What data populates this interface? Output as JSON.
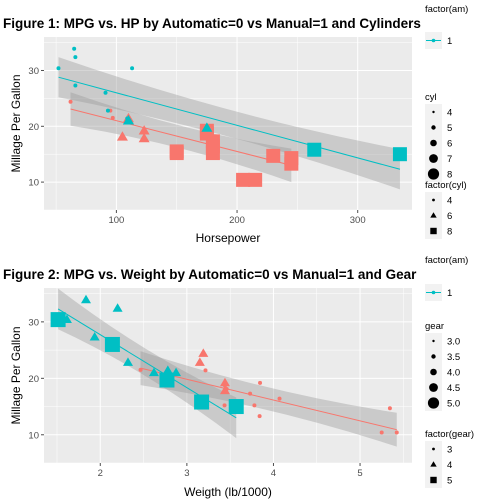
{
  "colors": {
    "manual": "#00bfc4",
    "automatic": "#f8766d",
    "panel": "#ebebeb",
    "grid": "#ffffff",
    "ribbon": "#999999"
  },
  "chart_data": [
    {
      "type": "scatter",
      "title": "Figure 1: MPG vs. HP by Automatic=0 vs Manual=1 and Cylinders",
      "xlabel": "Horsepower",
      "ylabel": "Millage Per Gallon",
      "xlim": [
        40,
        345
      ],
      "ylim": [
        5,
        36
      ],
      "xticks": [
        100,
        200,
        300
      ],
      "yticks": [
        10,
        20,
        30
      ],
      "grid": true,
      "legend_position": "right",
      "legend": {
        "color_title": "factor(am)",
        "color_items": [
          "1"
        ],
        "size_title": "cyl",
        "size_items": [
          "4",
          "5",
          "6",
          "7",
          "8"
        ],
        "shape_title": "factor(cyl)",
        "shape_items": [
          "4",
          "6",
          "8"
        ]
      },
      "series": [
        {
          "name": "0",
          "points": [
            {
              "x": 110,
              "y": 21.4,
              "shape": "6"
            },
            {
              "x": 175,
              "y": 18.7,
              "shape": "8"
            },
            {
              "x": 105,
              "y": 18.1,
              "shape": "6"
            },
            {
              "x": 245,
              "y": 14.3,
              "shape": "8"
            },
            {
              "x": 62,
              "y": 24.4,
              "shape": "4"
            },
            {
              "x": 95,
              "y": 22.8,
              "shape": "4"
            },
            {
              "x": 123,
              "y": 19.2,
              "shape": "6"
            },
            {
              "x": 123,
              "y": 17.8,
              "shape": "6"
            },
            {
              "x": 180,
              "y": 16.4,
              "shape": "8"
            },
            {
              "x": 180,
              "y": 17.3,
              "shape": "8"
            },
            {
              "x": 180,
              "y": 15.2,
              "shape": "8"
            },
            {
              "x": 205,
              "y": 10.4,
              "shape": "8"
            },
            {
              "x": 215,
              "y": 10.4,
              "shape": "8"
            },
            {
              "x": 230,
              "y": 14.7,
              "shape": "8"
            },
            {
              "x": 97,
              "y": 21.5,
              "shape": "4"
            },
            {
              "x": 150,
              "y": 15.5,
              "shape": "8"
            },
            {
              "x": 150,
              "y": 15.2,
              "shape": "8"
            },
            {
              "x": 245,
              "y": 13.3,
              "shape": "8"
            },
            {
              "x": 175,
              "y": 19.2,
              "shape": "8"
            }
          ],
          "fit": {
            "x": [
              62,
              245
            ],
            "y": [
              23.1,
              13.0
            ]
          }
        },
        {
          "name": "1",
          "points": [
            {
              "x": 110,
              "y": 21.0,
              "shape": "6"
            },
            {
              "x": 110,
              "y": 21.0,
              "shape": "6"
            },
            {
              "x": 93,
              "y": 22.8,
              "shape": "4"
            },
            {
              "x": 66,
              "y": 32.4,
              "shape": "4"
            },
            {
              "x": 52,
              "y": 30.4,
              "shape": "4"
            },
            {
              "x": 65,
              "y": 33.9,
              "shape": "4"
            },
            {
              "x": 66,
              "y": 27.3,
              "shape": "4"
            },
            {
              "x": 91,
              "y": 26.0,
              "shape": "4"
            },
            {
              "x": 113,
              "y": 30.4,
              "shape": "4"
            },
            {
              "x": 264,
              "y": 15.8,
              "shape": "8"
            },
            {
              "x": 175,
              "y": 19.7,
              "shape": "6"
            },
            {
              "x": 335,
              "y": 15.0,
              "shape": "8"
            },
            {
              "x": 109,
              "y": 21.4,
              "shape": "4"
            }
          ],
          "fit": {
            "x": [
              52,
              335
            ],
            "y": [
              28.8,
              12.3
            ]
          }
        }
      ]
    },
    {
      "type": "scatter",
      "title": "Figure 2: MPG vs. Weight by Automatic=0 vs Manual=1 and Gear",
      "xlabel": "Weigth (lb/1000)",
      "ylabel": "Millage Per Gallon",
      "xlim": [
        1.35,
        5.6
      ],
      "ylim": [
        5,
        36
      ],
      "xticks": [
        2,
        3,
        4,
        5
      ],
      "yticks": [
        10,
        20,
        30
      ],
      "grid": true,
      "legend_position": "right",
      "legend": {
        "color_title": "factor(am)",
        "color_items": [
          "1"
        ],
        "size_title": "gear",
        "size_items": [
          "3.0",
          "3.5",
          "4.0",
          "4.5",
          "5.0"
        ],
        "shape_title": "factor(gear)",
        "shape_items": [
          "3",
          "4",
          "5"
        ]
      },
      "series": [
        {
          "name": "0",
          "points": [
            {
              "x": 3.215,
              "y": 21.4,
              "shape": "3"
            },
            {
              "x": 3.44,
              "y": 18.7,
              "shape": "3"
            },
            {
              "x": 3.46,
              "y": 18.1,
              "shape": "3"
            },
            {
              "x": 3.57,
              "y": 14.3,
              "shape": "3"
            },
            {
              "x": 3.19,
              "y": 24.4,
              "shape": "4"
            },
            {
              "x": 3.15,
              "y": 22.8,
              "shape": "4"
            },
            {
              "x": 3.44,
              "y": 19.2,
              "shape": "4"
            },
            {
              "x": 3.44,
              "y": 17.8,
              "shape": "4"
            },
            {
              "x": 4.07,
              "y": 16.4,
              "shape": "3"
            },
            {
              "x": 3.73,
              "y": 17.3,
              "shape": "3"
            },
            {
              "x": 3.78,
              "y": 15.2,
              "shape": "3"
            },
            {
              "x": 5.25,
              "y": 10.4,
              "shape": "3"
            },
            {
              "x": 5.424,
              "y": 10.4,
              "shape": "3"
            },
            {
              "x": 5.345,
              "y": 14.7,
              "shape": "3"
            },
            {
              "x": 2.465,
              "y": 21.5,
              "shape": "3"
            },
            {
              "x": 3.52,
              "y": 15.5,
              "shape": "3"
            },
            {
              "x": 3.435,
              "y": 15.2,
              "shape": "3"
            },
            {
              "x": 3.84,
              "y": 13.3,
              "shape": "3"
            },
            {
              "x": 3.845,
              "y": 19.2,
              "shape": "3"
            }
          ],
          "fit": {
            "x": [
              2.465,
              5.424
            ],
            "y": [
              21.8,
              10.9
            ]
          }
        },
        {
          "name": "1",
          "points": [
            {
              "x": 2.62,
              "y": 21.0,
              "shape": "4"
            },
            {
              "x": 2.875,
              "y": 21.0,
              "shape": "4"
            },
            {
              "x": 2.32,
              "y": 22.8,
              "shape": "4"
            },
            {
              "x": 2.2,
              "y": 32.4,
              "shape": "4"
            },
            {
              "x": 1.615,
              "y": 30.4,
              "shape": "4"
            },
            {
              "x": 1.835,
              "y": 33.9,
              "shape": "4"
            },
            {
              "x": 1.935,
              "y": 27.3,
              "shape": "4"
            },
            {
              "x": 2.14,
              "y": 26.0,
              "shape": "5"
            },
            {
              "x": 1.513,
              "y": 30.4,
              "shape": "5"
            },
            {
              "x": 3.17,
              "y": 15.8,
              "shape": "5"
            },
            {
              "x": 2.77,
              "y": 19.7,
              "shape": "5"
            },
            {
              "x": 3.57,
              "y": 15.0,
              "shape": "5"
            },
            {
              "x": 2.78,
              "y": 21.4,
              "shape": "4"
            }
          ],
          "fit": {
            "x": [
              1.513,
              3.57
            ],
            "y": [
              32.3,
              13.0
            ]
          }
        }
      ]
    }
  ]
}
